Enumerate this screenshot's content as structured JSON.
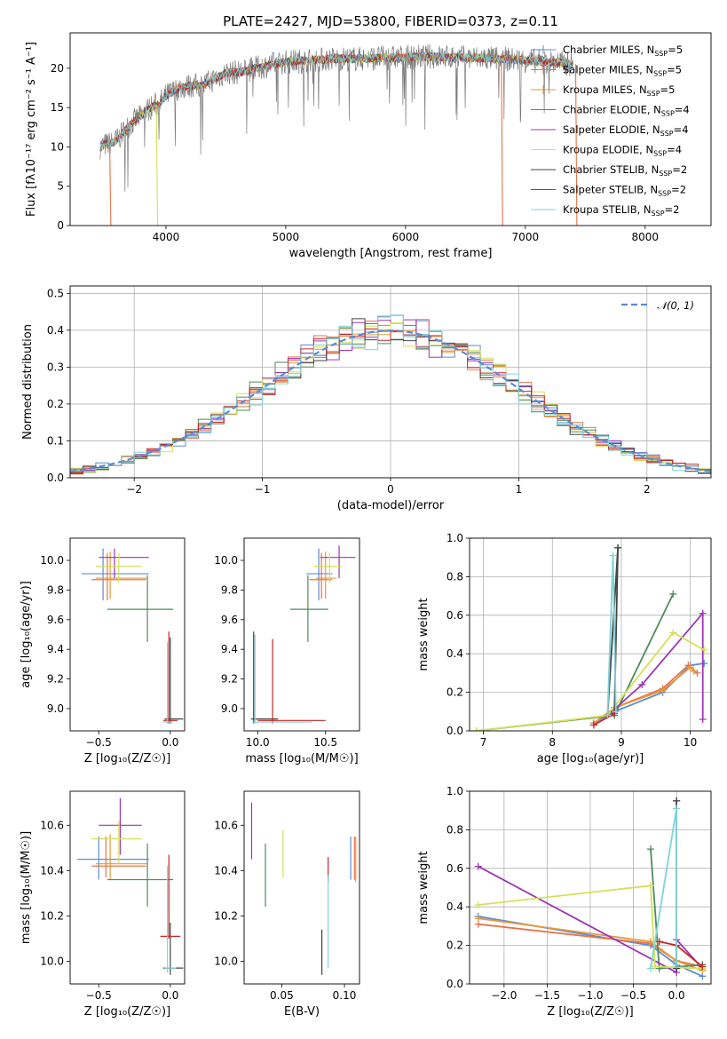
{
  "figure_title": "PLATE=2427, MJD=53800, FIBERID=0373, z=0.11",
  "chart_data": [
    {
      "id": "spectrum",
      "type": "line",
      "xlabel": "wavelength [Angstrom, rest frame]",
      "ylabel": "Flux [fλ10⁻¹⁷ erg cm⁻² s⁻¹ A⁻¹]",
      "xlim": [
        3200,
        8550
      ],
      "ylim": [
        0,
        24.5
      ],
      "xticks": [
        4000,
        5000,
        6000,
        7000,
        8000
      ],
      "yticks": [
        0,
        5,
        10,
        15,
        20
      ],
      "legend_position": "right",
      "data_curve": {
        "x": [
          3450,
          3500,
          3550,
          3600,
          3650,
          3700,
          3750,
          3800,
          3850,
          3900,
          3950,
          4000,
          4100,
          4200,
          4300,
          4400,
          4500,
          4600,
          4700,
          4800,
          4900,
          5000,
          5200,
          5400,
          5600,
          5800,
          6000,
          6200,
          6400,
          6600,
          6800,
          7000,
          7200,
          7400
        ],
        "y": [
          10.0,
          10.3,
          10.5,
          11.0,
          12.0,
          12.8,
          13.5,
          14.0,
          14.8,
          15.2,
          15.6,
          16.5,
          17.4,
          17.8,
          17.8,
          18.6,
          19.4,
          19.5,
          19.8,
          20.2,
          20.5,
          20.8,
          21.0,
          21.2,
          21.2,
          21.3,
          21.4,
          21.5,
          21.4,
          21.3,
          21.2,
          21.0,
          20.8,
          20.5
        ]
      },
      "drops": [
        {
          "series": 1,
          "x": 3530,
          "y": 0
        },
        {
          "series": 5,
          "x": 3920,
          "y": 0
        },
        {
          "series": 1,
          "x": 6800,
          "y": 0
        },
        {
          "series": 1,
          "x": 7420,
          "y": 0
        }
      ],
      "series": [
        {
          "name": "Chabrier MILES, N",
          "sub": "SSP",
          "suffix": "=5",
          "color": "#5b8bd6"
        },
        {
          "name": "Salpeter MILES, N",
          "sub": "SSP",
          "suffix": "=5",
          "color": "#e8744a"
        },
        {
          "name": "Kroupa MILES, N",
          "sub": "SSP",
          "suffix": "=5",
          "color": "#e49a3a"
        },
        {
          "name": "Chabrier ELODIE, N",
          "sub": "SSP",
          "suffix": "=4",
          "color": "#4e8a5e"
        },
        {
          "name": "Salpeter ELODIE, N",
          "sub": "SSP",
          "suffix": "=4",
          "color": "#9c36b5"
        },
        {
          "name": "Kroupa ELODIE, N",
          "sub": "SSP",
          "suffix": "=4",
          "color": "#d4e157"
        },
        {
          "name": "Chabrier STELIB, N",
          "sub": "SSP",
          "suffix": "=2",
          "color": "#444444"
        },
        {
          "name": "Salpeter STELIB, N",
          "sub": "SSP",
          "suffix": "=2",
          "color": "#c62828"
        },
        {
          "name": "Kroupa STELIB, N",
          "sub": "SSP",
          "suffix": "=2",
          "color": "#7fd3d8"
        }
      ]
    },
    {
      "id": "residuals",
      "type": "line",
      "xlabel": "(data-model)/error",
      "ylabel": "Normed distribution",
      "xlim": [
        -2.5,
        2.5
      ],
      "ylim": [
        0,
        0.52
      ],
      "xticks": [
        -2,
        -1,
        0,
        1,
        2
      ],
      "yticks": [
        0.0,
        0.1,
        0.2,
        0.3,
        0.4,
        0.5
      ],
      "grid": true,
      "legend_position": "top-right",
      "reference_curve": {
        "name": "𝒩(0, 1)",
        "color": "#5b8bd6"
      }
    },
    {
      "id": "age_vs_Z",
      "type": "scatter",
      "xlabel": "Z [log₁₀(Z/Z☉)]",
      "ylabel": "age  [log₁₀(age/yr)]",
      "xlim": [
        -0.7,
        0.1
      ],
      "ylim": [
        8.85,
        10.15
      ],
      "xticks": [
        -0.5,
        0.0
      ],
      "yticks": [
        9.0,
        9.2,
        9.4,
        9.6,
        9.8,
        10.0
      ],
      "points": [
        {
          "s": 0,
          "x": -0.47,
          "y": 9.91,
          "xe": [
            -0.62,
            -0.15
          ],
          "ye": [
            9.73,
            10.08
          ]
        },
        {
          "s": 1,
          "x": -0.44,
          "y": 9.87,
          "xe": [
            -0.55,
            -0.17
          ],
          "ye": [
            9.73,
            10.05
          ]
        },
        {
          "s": 2,
          "x": -0.42,
          "y": 9.88,
          "xe": [
            -0.52,
            -0.16
          ],
          "ye": [
            9.74,
            10.06
          ]
        },
        {
          "s": 3,
          "x": -0.16,
          "y": 9.67,
          "xe": [
            -0.44,
            0.02
          ],
          "ye": [
            9.45,
            9.9
          ]
        },
        {
          "s": 4,
          "x": -0.39,
          "y": 10.02,
          "xe": [
            -0.5,
            -0.15
          ],
          "ye": [
            9.88,
            10.08
          ]
        },
        {
          "s": 5,
          "x": -0.36,
          "y": 9.96,
          "xe": [
            -0.52,
            -0.2
          ],
          "ye": [
            9.85,
            10.05
          ]
        },
        {
          "s": 6,
          "x": 0.0,
          "y": 8.93,
          "xe": [
            -0.04,
            0.09
          ],
          "ye": [
            8.9,
            9.48
          ]
        },
        {
          "s": 7,
          "x": -0.01,
          "y": 8.92,
          "xe": [
            -0.05,
            0.05
          ],
          "ye": [
            8.9,
            9.52
          ]
        },
        {
          "s": 8,
          "x": -0.02,
          "y": 8.91,
          "xe": [
            -0.05,
            0.02
          ],
          "ye": [
            8.9,
            9.45
          ]
        }
      ]
    },
    {
      "id": "age_vs_mass",
      "type": "scatter",
      "xlabel": "mass [log₁₀(M/M☉)]",
      "ylabel": "",
      "xlim": [
        9.9,
        10.75
      ],
      "ylim": [
        8.85,
        10.15
      ],
      "xticks": [
        10.0,
        10.5
      ],
      "yticks": [
        9.0,
        9.2,
        9.4,
        9.6,
        9.8,
        10.0
      ],
      "points": [
        {
          "s": 0,
          "x": 10.45,
          "y": 9.91,
          "xe": [
            10.36,
            10.55
          ],
          "ye": [
            9.73,
            10.08
          ]
        },
        {
          "s": 1,
          "x": 10.47,
          "y": 9.87,
          "xe": [
            10.38,
            10.55
          ],
          "ye": [
            9.74,
            10.05
          ]
        },
        {
          "s": 2,
          "x": 10.5,
          "y": 9.88,
          "xe": [
            10.43,
            10.58
          ],
          "ye": [
            9.74,
            10.06
          ]
        },
        {
          "s": 3,
          "x": 10.37,
          "y": 9.67,
          "xe": [
            10.24,
            10.52
          ],
          "ye": [
            9.45,
            9.9
          ]
        },
        {
          "s": 4,
          "x": 10.6,
          "y": 10.02,
          "xe": [
            10.46,
            10.72
          ],
          "ye": [
            9.88,
            10.1
          ]
        },
        {
          "s": 5,
          "x": 10.53,
          "y": 9.96,
          "xe": [
            10.41,
            10.62
          ],
          "ye": [
            9.85,
            10.05
          ]
        },
        {
          "s": 6,
          "x": 9.97,
          "y": 8.93,
          "xe": [
            9.95,
            10.15
          ],
          "ye": [
            8.9,
            9.52
          ]
        },
        {
          "s": 7,
          "x": 10.11,
          "y": 8.92,
          "xe": [
            10.0,
            10.5
          ],
          "ye": [
            8.9,
            9.47
          ]
        },
        {
          "s": 8,
          "x": 9.98,
          "y": 8.91,
          "xe": [
            9.96,
            10.4
          ],
          "ye": [
            8.9,
            9.5
          ]
        }
      ]
    },
    {
      "id": "weight_vs_age",
      "type": "line",
      "xlabel": "age  [log₁₀(age/yr)]",
      "ylabel": "mass weight",
      "xlim": [
        6.8,
        10.3
      ],
      "ylim": [
        0,
        1.0
      ],
      "xticks": [
        7,
        8,
        9,
        10
      ],
      "yticks": [
        0.0,
        0.2,
        0.4,
        0.6,
        0.8,
        1.0
      ],
      "grid": true,
      "lines": [
        {
          "s": 0,
          "x": [
            8.6,
            8.9,
            9.6,
            10.0,
            10.2
          ],
          "y": [
            0.04,
            0.1,
            0.2,
            0.34,
            0.35
          ]
        },
        {
          "s": 1,
          "x": [
            8.6,
            8.9,
            9.6,
            9.97,
            10.1
          ],
          "y": [
            0.04,
            0.12,
            0.22,
            0.34,
            0.3
          ]
        },
        {
          "s": 2,
          "x": [
            8.6,
            8.9,
            9.6,
            10.0,
            10.05
          ],
          "y": [
            0.04,
            0.12,
            0.21,
            0.33,
            0.31
          ]
        },
        {
          "s": 3,
          "x": [
            6.9,
            8.9,
            9.75
          ],
          "y": [
            0.0,
            0.08,
            0.71
          ]
        },
        {
          "s": 4,
          "x": [
            8.8,
            9.3,
            10.18,
            10.18
          ],
          "y": [
            0.08,
            0.24,
            0.61,
            0.06
          ]
        },
        {
          "s": 5,
          "x": [
            6.9,
            8.8,
            9.75,
            10.2
          ],
          "y": [
            0.0,
            0.08,
            0.51,
            0.42
          ]
        },
        {
          "s": 6,
          "x": [
            8.8,
            8.95,
            8.9,
            8.95
          ],
          "y": [
            0.08,
            0.95,
            0.1,
            0.95
          ]
        },
        {
          "s": 7,
          "x": [
            8.6,
            8.9
          ],
          "y": [
            0.03,
            0.09
          ]
        },
        {
          "s": 8,
          "x": [
            8.8,
            8.88,
            8.92
          ],
          "y": [
            0.08,
            0.91,
            0.1
          ]
        }
      ]
    },
    {
      "id": "mass_vs_Z",
      "type": "scatter",
      "xlabel": "Z [log₁₀(Z/Z☉)]",
      "ylabel": "mass [log₁₀(M/M☉)]",
      "xlim": [
        -0.7,
        0.1
      ],
      "ylim": [
        9.9,
        10.75
      ],
      "xticks": [
        -0.5,
        0.0
      ],
      "yticks": [
        10.0,
        10.2,
        10.4,
        10.6
      ],
      "points": [
        {
          "s": 0,
          "x": -0.5,
          "y": 10.45,
          "xe": [
            -0.65,
            -0.15
          ],
          "ye": [
            10.36,
            10.55
          ]
        },
        {
          "s": 1,
          "x": -0.45,
          "y": 10.42,
          "xe": [
            -0.55,
            -0.17
          ],
          "ye": [
            10.37,
            10.55
          ]
        },
        {
          "s": 2,
          "x": -0.42,
          "y": 10.43,
          "xe": [
            -0.52,
            -0.16
          ],
          "ye": [
            10.36,
            10.56
          ]
        },
        {
          "s": 3,
          "x": -0.16,
          "y": 10.36,
          "xe": [
            -0.44,
            0.02
          ],
          "ye": [
            10.24,
            10.52
          ]
        },
        {
          "s": 4,
          "x": -0.35,
          "y": 10.6,
          "xe": [
            -0.5,
            -0.2
          ],
          "ye": [
            10.47,
            10.72
          ]
        },
        {
          "s": 5,
          "x": -0.36,
          "y": 10.54,
          "xe": [
            -0.55,
            -0.2
          ],
          "ye": [
            10.43,
            10.62
          ]
        },
        {
          "s": 6,
          "x": 0.0,
          "y": 9.97,
          "xe": [
            -0.05,
            0.09
          ],
          "ye": [
            9.94,
            10.17
          ]
        },
        {
          "s": 7,
          "x": -0.01,
          "y": 10.11,
          "xe": [
            -0.07,
            0.07
          ],
          "ye": [
            10.1,
            10.47
          ]
        },
        {
          "s": 8,
          "x": -0.02,
          "y": 9.97,
          "xe": [
            -0.04,
            0.04
          ],
          "ye": [
            9.95,
            10.42
          ]
        }
      ]
    },
    {
      "id": "mass_vs_ebv",
      "type": "scatter",
      "xlabel": "E(B-V)",
      "ylabel": "",
      "xlim": [
        0.02,
        0.112
      ],
      "ylim": [
        9.9,
        10.75
      ],
      "xticks": [
        0.05,
        0.1
      ],
      "yticks": [
        10.0,
        10.2,
        10.4,
        10.6
      ],
      "points": [
        {
          "s": 0,
          "x": 0.105,
          "y": 10.45,
          "ye": [
            10.36,
            10.55
          ]
        },
        {
          "s": 1,
          "x": 0.108,
          "y": 10.42,
          "ye": [
            10.36,
            10.55
          ]
        },
        {
          "s": 2,
          "x": 0.109,
          "y": 10.43,
          "ye": [
            10.35,
            10.55
          ]
        },
        {
          "s": 3,
          "x": 0.037,
          "y": 10.36,
          "ye": [
            10.24,
            10.52
          ]
        },
        {
          "s": 4,
          "x": 0.026,
          "y": 10.6,
          "ye": [
            10.45,
            10.7
          ]
        },
        {
          "s": 5,
          "x": 0.051,
          "y": 10.48,
          "ye": [
            10.37,
            10.58
          ]
        },
        {
          "s": 6,
          "x": 0.082,
          "y": 10.03,
          "ye": [
            9.94,
            10.14
          ]
        },
        {
          "s": 7,
          "x": 0.087,
          "y": 10.4,
          "ye": [
            10.35,
            10.46
          ]
        },
        {
          "s": 8,
          "x": 0.087,
          "y": 10.15,
          "ye": [
            9.97,
            10.38
          ]
        }
      ]
    },
    {
      "id": "weight_vs_Z",
      "type": "line",
      "xlabel": "Z [log₁₀(Z/Z☉)]",
      "ylabel": "mass weight",
      "xlim": [
        -2.4,
        0.4
      ],
      "ylim": [
        0,
        1.0
      ],
      "xticks": [
        -2.0,
        -1.5,
        -1.0,
        -0.5,
        0.0
      ],
      "yticks": [
        0.0,
        0.2,
        0.4,
        0.6,
        0.8,
        1.0
      ],
      "grid": true,
      "lines": [
        {
          "s": 0,
          "x": [
            -2.3,
            -0.3,
            0.0,
            0.3
          ],
          "y": [
            0.35,
            0.2,
            0.1,
            0.04
          ]
        },
        {
          "s": 1,
          "x": [
            -2.3,
            -0.3,
            0.0,
            0.3
          ],
          "y": [
            0.31,
            0.21,
            0.12,
            0.09
          ]
        },
        {
          "s": 2,
          "x": [
            -2.3,
            -0.3,
            0.0,
            0.3
          ],
          "y": [
            0.34,
            0.22,
            0.12,
            0.07
          ]
        },
        {
          "s": 3,
          "x": [
            -0.3,
            -0.2,
            0.3
          ],
          "y": [
            0.7,
            0.08,
            0.1
          ]
        },
        {
          "s": 4,
          "x": [
            -2.3,
            0.0,
            0.0,
            0.3
          ],
          "y": [
            0.61,
            0.06,
            0.23,
            0.08
          ]
        },
        {
          "s": 5,
          "x": [
            -2.3,
            -0.3,
            -0.25,
            0.3
          ],
          "y": [
            0.41,
            0.51,
            0.09,
            0.08
          ]
        },
        {
          "s": 6,
          "x": [
            0.0,
            0.0,
            0.0
          ],
          "y": [
            0.95,
            0.08,
            0.95
          ]
        },
        {
          "s": 7,
          "x": [
            -0.2,
            0.0,
            0.3
          ],
          "y": [
            0.22,
            0.2,
            0.09
          ]
        },
        {
          "s": 8,
          "x": [
            -0.3,
            0.0,
            0.0
          ],
          "y": [
            0.08,
            0.91,
            0.1
          ]
        }
      ]
    }
  ]
}
